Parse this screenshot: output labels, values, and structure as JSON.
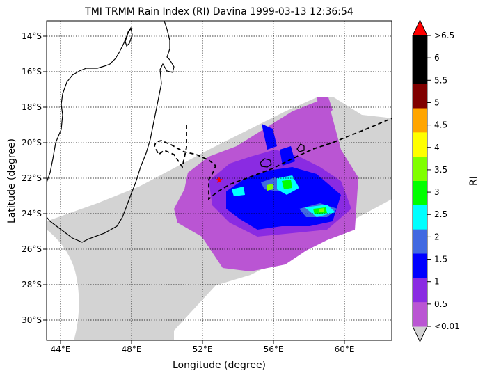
{
  "title": "TMI TRMM Rain Index (RI) Davina 1999-03-13 12:36:54",
  "xlabel": "Longitude (degree)",
  "ylabel": "Latitude (degree)",
  "x_ticks": [
    "44°E",
    "48°E",
    "52°E",
    "56°E",
    "60°E"
  ],
  "y_ticks": [
    "14°S",
    "16°S",
    "18°S",
    "20°S",
    "22°S",
    "24°S",
    "26°S",
    "28°S",
    "30°S"
  ],
  "colorbar": {
    "label": "RI",
    "tick_labels": [
      ">6.5",
      "6",
      "5.5",
      "5",
      "4.5",
      "4",
      "3.5",
      "3",
      "2.5",
      "2",
      "1.5",
      "1",
      "0.5",
      "<0.01"
    ],
    "colors": [
      "#000000",
      "#000000",
      "#800000",
      "#ffa500",
      "#ffff00",
      "#7fff00",
      "#00ff00",
      "#00ffff",
      "#4169e1",
      "#0000ff",
      "#8a2be2",
      "#ba55d3"
    ],
    "over_color": "#ff0000",
    "under_color": "#d3d3d3"
  },
  "colors": {
    "swath_no_rain": "#d3d3d3",
    "coast": "#000000",
    "track": "#000000",
    "storm_center": "#ff0000"
  }
}
